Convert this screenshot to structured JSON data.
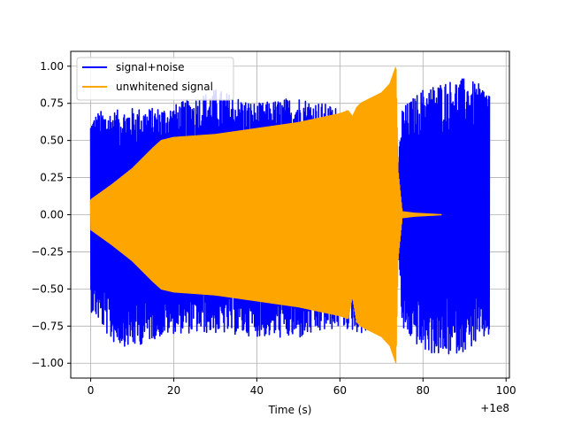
{
  "chart_data": {
    "type": "line",
    "title": "",
    "xlabel": "Time (s)",
    "ylabel": "",
    "x_offset_label": "+1e8",
    "xlim": [
      -4.8,
      100.8
    ],
    "ylim": [
      -1.1,
      1.1
    ],
    "x_ticks": [
      0,
      20,
      40,
      60,
      80,
      100
    ],
    "x_tick_labels": [
      "0",
      "20",
      "40",
      "60",
      "80",
      "100"
    ],
    "y_ticks": [
      -1.0,
      -0.75,
      -0.5,
      -0.25,
      0.0,
      0.25,
      0.5,
      0.75,
      1.0
    ],
    "y_tick_labels": [
      "−1.00",
      "−0.75",
      "−0.50",
      "−0.25",
      "0.00",
      "0.25",
      "0.50",
      "0.75",
      "1.00"
    ],
    "grid": true,
    "legend_position": "top-left",
    "series": [
      {
        "name": "signal+noise",
        "color": "#0000ff",
        "x_range": [
          0,
          96
        ],
        "envelope_x": [
          0,
          2,
          5,
          10,
          15,
          20,
          30,
          40,
          50,
          60,
          65,
          70,
          73,
          74,
          75,
          80,
          85,
          90,
          96
        ],
        "envelope_upper": [
          0.65,
          0.7,
          0.7,
          0.72,
          0.72,
          0.74,
          0.85,
          0.75,
          0.8,
          0.72,
          0.65,
          0.75,
          0.9,
          0.35,
          0.72,
          0.85,
          0.9,
          0.92,
          0.85
        ],
        "envelope_lower": [
          -0.65,
          -0.72,
          -0.86,
          -0.9,
          -0.84,
          -0.8,
          -0.8,
          -0.82,
          -0.84,
          -0.76,
          -0.8,
          -0.78,
          -0.92,
          -0.2,
          -0.78,
          -0.92,
          -0.96,
          -0.92,
          -0.82
        ]
      },
      {
        "name": "unwhitened signal",
        "color": "#ffa500",
        "x_range": [
          0,
          84.5
        ],
        "envelope_x": [
          0,
          5,
          10,
          15,
          17,
          20,
          30,
          40,
          50,
          60,
          62,
          63,
          64,
          65,
          70,
          72,
          73.5,
          74,
          75,
          78,
          84.5
        ],
        "envelope_upper": [
          0.1,
          0.2,
          0.31,
          0.45,
          0.5,
          0.52,
          0.54,
          0.58,
          0.62,
          0.68,
          0.7,
          0.66,
          0.72,
          0.75,
          0.82,
          0.88,
          1.0,
          0.3,
          0.02,
          0.01,
          0.0
        ],
        "envelope_lower": [
          -0.1,
          -0.2,
          -0.31,
          -0.45,
          -0.5,
          -0.52,
          -0.54,
          -0.58,
          -0.62,
          -0.68,
          -0.7,
          -0.55,
          -0.72,
          -0.75,
          -0.82,
          -0.88,
          -1.0,
          -0.3,
          -0.02,
          -0.01,
          0.0
        ]
      }
    ]
  }
}
